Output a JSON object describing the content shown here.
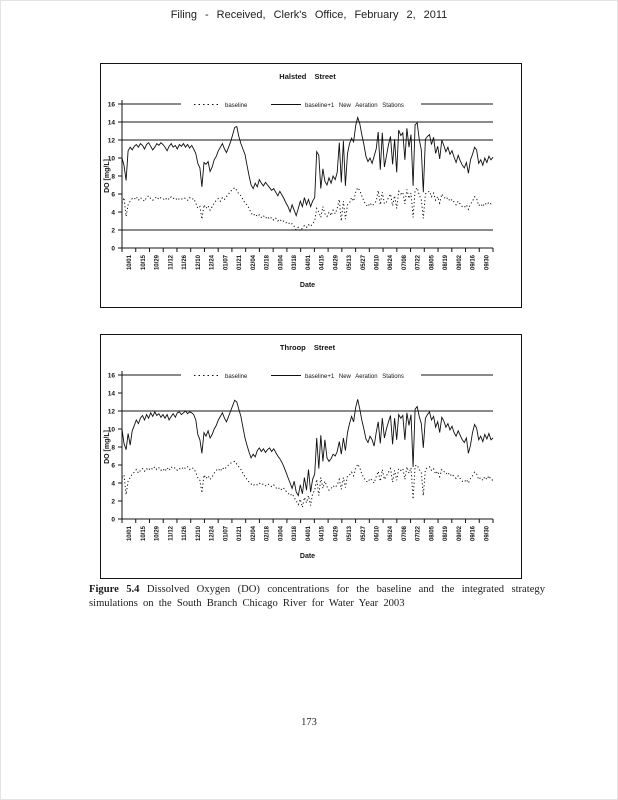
{
  "page": {
    "header": "Filing - Received, Clerk's Office, February 2, 2011",
    "caption_label": "Figure 5.4",
    "caption_text": " Dissolved Oxygen (DO) concentrations for the baseline and the integrated strategy simulations on the South Branch Chicago River for Water Year 2003",
    "page_number": "173"
  },
  "chart_data": [
    {
      "type": "line",
      "title": "Halsted Street",
      "xlabel": "Date",
      "ylabel": "DO [mg/L]",
      "ylim": [
        0,
        16
      ],
      "ytick_step": 2,
      "grid": "horizontal-reference-lines-only",
      "ref_lines": [
        2,
        12,
        14,
        16
      ],
      "legend_position": "top-inside",
      "x_tick_labels": [
        "10/01",
        "10/15",
        "10/29",
        "11/12",
        "11/26",
        "12/10",
        "12/24",
        "01/07",
        "01/21",
        "02/04",
        "02/18",
        "03/04",
        "03/18",
        "04/01",
        "04/15",
        "04/29",
        "05/13",
        "05/27",
        "06/10",
        "06/24",
        "07/08",
        "07/22",
        "08/05",
        "08/19",
        "09/02",
        "09/16",
        "09/30"
      ],
      "series": [
        {
          "name": "baseline",
          "style": "dotted",
          "values": [
            5.0,
            5.6,
            3.5,
            4.8,
            5.2,
            5.5,
            5.4,
            5.7,
            5.3,
            5.6,
            5.4,
            5.2,
            5.6,
            5.8,
            5.5,
            5.3,
            5.5,
            5.7,
            5.4,
            5.6,
            5.5,
            5.3,
            5.6,
            5.4,
            5.7,
            5.5,
            5.6,
            5.3,
            5.5,
            5.4,
            5.6,
            5.5,
            5.3,
            5.6,
            5.4,
            5.5,
            5.0,
            4.4,
            4.6,
            3.2,
            4.8,
            4.4,
            4.7,
            4.2,
            4.6,
            5.0,
            5.3,
            5.5,
            5.2,
            5.6,
            5.4,
            5.7,
            6.0,
            6.3,
            6.5,
            6.7,
            6.4,
            6.0,
            5.8,
            5.4,
            5.0,
            4.8,
            4.4,
            3.9,
            3.6,
            3.8,
            3.5,
            3.7,
            3.4,
            3.6,
            3.3,
            3.5,
            3.2,
            3.4,
            3.1,
            3.3,
            3.0,
            3.2,
            2.9,
            3.0,
            2.8,
            2.9,
            2.6,
            2.7,
            2.4,
            2.0,
            2.3,
            1.9,
            2.2,
            2.5,
            2.3,
            2.6,
            2.4,
            2.7,
            3.0,
            4.4,
            4.0,
            3.4,
            4.6,
            3.8,
            3.5,
            4.0,
            3.6,
            4.2,
            3.8,
            4.4,
            5.4,
            3.0,
            5.2,
            3.2,
            4.8,
            5.0,
            5.6,
            5.2,
            6.2,
            6.7,
            6.4,
            5.8,
            5.2,
            4.8,
            4.6,
            5.0,
            4.7,
            4.9,
            5.2,
            6.4,
            4.8,
            6.2,
            4.9,
            5.1,
            5.6,
            6.0,
            4.7,
            5.8,
            4.4,
            6.3,
            6.0,
            6.2,
            4.9,
            6.5,
            5.5,
            6.1,
            3.4,
            6.4,
            6.7,
            5.9,
            5.4,
            3.3,
            6.0,
            6.2,
            6.3,
            5.7,
            6.1,
            5.3,
            5.7,
            5.0,
            6.0,
            5.7,
            5.4,
            5.6,
            5.2,
            5.4,
            5.1,
            4.8,
            5.2,
            4.9,
            4.6,
            4.5,
            4.8,
            4.3,
            4.9,
            5.2,
            5.7,
            5.5,
            4.7,
            4.9,
            4.6,
            5.0,
            4.8,
            5.1,
            4.9,
            5.0
          ]
        },
        {
          "name": "baseline+1  New  Aeration  Stations",
          "style": "solid",
          "values": [
            10.0,
            9.2,
            7.5,
            10.8,
            11.2,
            10.9,
            11.3,
            11.5,
            11.2,
            11.6,
            11.4,
            11.0,
            11.5,
            11.7,
            11.3,
            10.9,
            11.2,
            11.6,
            11.4,
            11.7,
            11.5,
            11.2,
            10.8,
            11.3,
            11.6,
            11.2,
            11.4,
            11.0,
            11.5,
            11.3,
            11.6,
            11.2,
            11.5,
            11.1,
            11.4,
            11.0,
            10.5,
            9.4,
            8.9,
            6.8,
            9.5,
            9.3,
            9.6,
            8.5,
            9.0,
            9.8,
            10.2,
            10.8,
            11.2,
            11.6,
            11.0,
            10.6,
            11.2,
            11.8,
            12.6,
            13.4,
            13.5,
            12.4,
            11.6,
            11.0,
            10.4,
            9.2,
            8.0,
            7.0,
            6.6,
            7.2,
            6.8,
            7.6,
            7.2,
            6.9,
            7.3,
            7.0,
            6.7,
            6.4,
            6.6,
            6.2,
            5.8,
            6.3,
            5.9,
            5.5,
            5.0,
            4.6,
            4.0,
            4.8,
            4.2,
            3.6,
            4.4,
            5.2,
            4.6,
            5.6,
            4.8,
            5.4,
            4.6,
            5.2,
            5.6,
            10.7,
            10.3,
            6.6,
            8.8,
            7.4,
            7.0,
            7.8,
            7.2,
            8.0,
            7.6,
            8.4,
            11.7,
            7.3,
            11.9,
            6.9,
            10.5,
            11.6,
            12.2,
            11.8,
            13.6,
            14.5,
            13.8,
            12.6,
            11.5,
            10.2,
            9.6,
            10.0,
            9.4,
            10.2,
            11.0,
            12.9,
            8.7,
            12.8,
            9.0,
            10.2,
            11.5,
            12.4,
            9.3,
            12.1,
            8.4,
            13.1,
            12.5,
            12.8,
            9.8,
            13.3,
            11.2,
            12.6,
            6.9,
            13.7,
            13.9,
            12.1,
            10.9,
            6.2,
            12.1,
            12.4,
            12.6,
            11.5,
            12.3,
            10.5,
            11.3,
            9.9,
            12.0,
            11.4,
            10.7,
            11.2,
            10.4,
            10.8,
            10.1,
            9.5,
            10.3,
            9.7,
            9.2,
            8.9,
            9.5,
            8.3,
            9.8,
            10.4,
            11.2,
            10.9,
            9.4,
            9.8,
            9.2,
            10.0,
            9.5,
            10.2,
            9.8,
            10.1
          ]
        }
      ]
    },
    {
      "type": "line",
      "title": "Throop Street",
      "xlabel": "Date",
      "ylabel": "DO [mg/L]",
      "ylim": [
        0,
        16
      ],
      "ytick_step": 2,
      "grid": "horizontal-reference-lines-only",
      "ref_lines": [
        12,
        16
      ],
      "legend_position": "top-inside",
      "x_tick_labels": [
        "10/01",
        "10/15",
        "10/29",
        "11/12",
        "11/26",
        "12/10",
        "12/24",
        "01/07",
        "01/21",
        "02/04",
        "02/18",
        "03/04",
        "03/18",
        "04/01",
        "04/15",
        "04/29",
        "05/13",
        "05/27",
        "06/10",
        "06/24",
        "07/08",
        "07/22",
        "08/05",
        "08/19",
        "09/02",
        "09/16",
        "09/30"
      ],
      "series": [
        {
          "name": "baseline",
          "style": "dotted",
          "values": [
            4.6,
            4.9,
            2.7,
            4.2,
            4.6,
            5.0,
            5.2,
            5.5,
            5.1,
            5.4,
            5.6,
            5.3,
            5.6,
            5.4,
            5.7,
            5.5,
            5.8,
            5.5,
            5.7,
            5.4,
            5.6,
            5.3,
            5.7,
            5.4,
            5.8,
            5.6,
            5.7,
            5.4,
            5.6,
            5.5,
            5.8,
            5.6,
            5.8,
            5.5,
            5.7,
            5.6,
            5.2,
            4.6,
            4.3,
            2.9,
            4.9,
            4.5,
            4.8,
            4.4,
            4.7,
            5.1,
            5.4,
            5.6,
            5.3,
            5.7,
            5.5,
            5.8,
            6.0,
            6.2,
            6.3,
            6.4,
            6.1,
            5.8,
            5.5,
            5.1,
            4.7,
            4.4,
            4.1,
            3.9,
            3.7,
            3.9,
            3.8,
            4.0,
            3.8,
            3.9,
            3.7,
            3.9,
            3.8,
            3.6,
            3.8,
            3.5,
            3.3,
            3.5,
            3.2,
            3.4,
            3.1,
            2.9,
            2.6,
            2.8,
            2.4,
            2.0,
            1.6,
            2.2,
            1.3,
            2.4,
            1.8,
            2.6,
            1.5,
            2.8,
            3.2,
            4.4,
            2.6,
            4.6,
            3.4,
            4.2,
            3.6,
            3.2,
            3.4,
            3.7,
            3.5,
            3.8,
            4.4,
            3.3,
            4.6,
            3.5,
            4.8,
            4.9,
            5.2,
            4.8,
            5.6,
            6.1,
            5.7,
            5.0,
            4.6,
            4.2,
            4.1,
            4.5,
            4.3,
            4.0,
            4.7,
            5.3,
            4.2,
            5.5,
            4.4,
            4.8,
            5.2,
            5.6,
            4.1,
            5.4,
            4.3,
            5.6,
            5.4,
            5.6,
            4.4,
            5.8,
            5.1,
            5.7,
            2.2,
            5.9,
            6.0,
            5.5,
            5.2,
            2.6,
            5.5,
            5.7,
            5.8,
            5.4,
            5.6,
            5.0,
            5.3,
            4.7,
            5.5,
            5.3,
            5.0,
            5.2,
            4.8,
            5.0,
            4.7,
            4.5,
            4.8,
            4.5,
            4.2,
            4.1,
            4.4,
            4.0,
            4.5,
            4.8,
            5.2,
            5.0,
            4.4,
            4.6,
            4.3,
            4.7,
            4.4,
            4.8,
            4.4,
            4.3
          ]
        },
        {
          "name": "baseline+1  New  Aeration  Stations",
          "style": "solid",
          "values": [
            10.0,
            8.4,
            7.7,
            9.5,
            8.2,
            9.8,
            10.4,
            11.0,
            10.6,
            11.2,
            11.5,
            11.0,
            11.6,
            11.2,
            11.8,
            11.4,
            11.9,
            11.5,
            11.7,
            11.3,
            11.6,
            11.2,
            11.6,
            11.0,
            11.4,
            11.7,
            11.3,
            11.8,
            11.9,
            11.6,
            11.8,
            12.0,
            11.7,
            11.9,
            11.8,
            11.6,
            11.0,
            9.4,
            8.8,
            7.3,
            9.6,
            9.2,
            9.8,
            9.0,
            9.4,
            10.0,
            10.4,
            11.0,
            11.4,
            11.8,
            11.2,
            10.8,
            11.4,
            12.0,
            12.6,
            13.2,
            13.0,
            12.2,
            11.4,
            10.2,
            9.0,
            8.2,
            7.4,
            6.8,
            7.2,
            6.9,
            7.6,
            7.9,
            7.5,
            7.8,
            7.4,
            7.7,
            7.9,
            7.5,
            7.8,
            7.4,
            7.0,
            6.7,
            6.3,
            5.8,
            5.2,
            4.6,
            4.0,
            3.4,
            4.2,
            3.0,
            2.6,
            3.8,
            2.8,
            4.6,
            3.2,
            5.5,
            3.0,
            4.4,
            5.0,
            9.0,
            5.6,
            9.3,
            6.4,
            8.8,
            6.8,
            6.4,
            6.7,
            7.2,
            7.0,
            7.5,
            8.6,
            7.2,
            9.0,
            7.6,
            9.6,
            10.6,
            11.4,
            10.8,
            12.4,
            13.3,
            12.2,
            11.0,
            10.0,
            8.9,
            8.5,
            9.2,
            8.8,
            8.1,
            9.6,
            10.8,
            8.4,
            11.2,
            9.0,
            10.0,
            10.8,
            11.5,
            8.3,
            11.2,
            8.8,
            11.6,
            11.2,
            11.5,
            8.8,
            11.8,
            10.4,
            11.6,
            5.8,
            12.2,
            12.5,
            11.4,
            10.6,
            7.9,
            11.2,
            11.6,
            11.9,
            11.0,
            11.4,
            10.2,
            10.8,
            9.6,
            11.3,
            10.9,
            10.2,
            10.6,
            9.9,
            10.3,
            9.6,
            9.2,
            9.8,
            9.3,
            8.8,
            8.5,
            9.0,
            7.3,
            8.2,
            9.6,
            10.5,
            10.1,
            8.8,
            9.2,
            8.6,
            9.4,
            8.9,
            9.5,
            8.8,
            9.0
          ]
        }
      ]
    }
  ]
}
